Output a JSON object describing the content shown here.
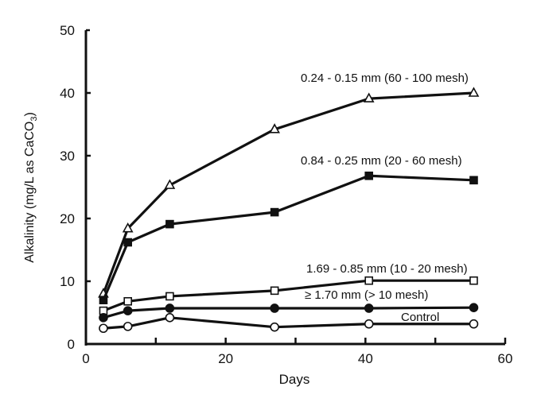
{
  "chart_data": {
    "type": "line",
    "title": "",
    "xlabel": "Days",
    "ylabel": "Alkalinity  (mg/L as CaCO",
    "ylabel_subscript": "3",
    "ylabel_close": ")",
    "xlim": [
      0,
      60
    ],
    "ylim": [
      0,
      50
    ],
    "xticks": [
      0,
      20,
      40,
      60
    ],
    "xminor": [
      10,
      30,
      50
    ],
    "yticks": [
      0,
      10,
      20,
      30,
      40,
      50
    ],
    "grid": false,
    "series": [
      {
        "name": "0.24 - 0.15 mm (60 - 100 mesh)",
        "marker": "open-triangle",
        "x": [
          2.5,
          6,
          12,
          27,
          40.5,
          55.5
        ],
        "y": [
          8.0,
          18.4,
          25.3,
          34.2,
          39.1,
          40.0
        ]
      },
      {
        "name": "0.84 - 0.25 mm (20 - 60 mesh)",
        "marker": "filled-square",
        "x": [
          2.5,
          6,
          12,
          27,
          40.5,
          55.5
        ],
        "y": [
          7.0,
          16.2,
          19.1,
          21.0,
          26.8,
          26.1
        ]
      },
      {
        "name": "1.69 - 0.85 mm (10 - 20 mesh)",
        "marker": "open-square",
        "x": [
          2.5,
          6,
          12,
          27,
          40.5,
          55.5
        ],
        "y": [
          5.3,
          6.8,
          7.6,
          8.5,
          10.1,
          10.1
        ]
      },
      {
        "name": "≥ 1.70 mm (> 10 mesh)",
        "marker": "filled-circle",
        "x": [
          2.5,
          6,
          12,
          27,
          40.5,
          55.5
        ],
        "y": [
          4.2,
          5.3,
          5.7,
          5.7,
          5.7,
          5.8
        ]
      },
      {
        "name": "Control",
        "marker": "open-circle",
        "x": [
          2.5,
          6,
          12,
          27,
          40.5,
          55.5
        ],
        "y": [
          2.5,
          2.8,
          4.2,
          2.7,
          3.2,
          3.2
        ]
      }
    ]
  }
}
